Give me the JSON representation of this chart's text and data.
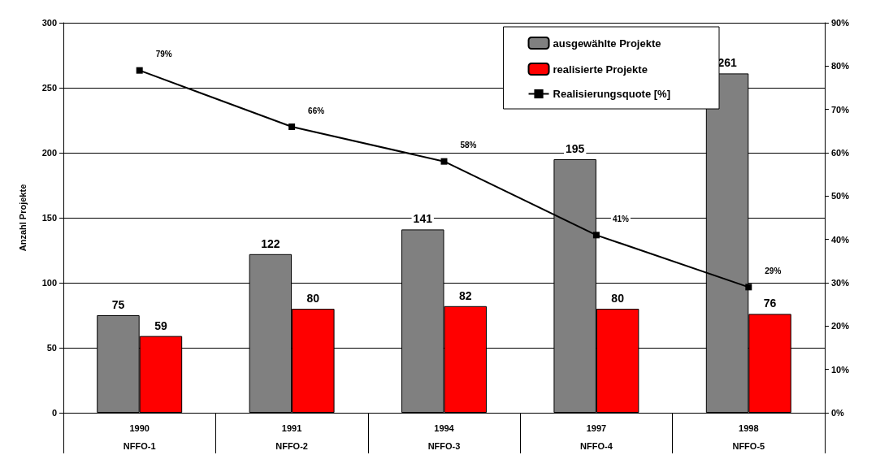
{
  "chart_data": {
    "type": "bar",
    "ylabel": "Anzahl Projekte",
    "categories": [
      "1990\nNFFO-1",
      "1991\nNFFO-2",
      "1994\nNFFO-3",
      "1997\nNFFO-4",
      "1998\nNFFO-5"
    ],
    "series": [
      {
        "name": "ausgewählte Projekte",
        "color": "#808080",
        "values": [
          75,
          122,
          141,
          195,
          261
        ]
      },
      {
        "name": "realisierte Projekte",
        "color": "#ff0000",
        "values": [
          59,
          80,
          82,
          80,
          76
        ]
      },
      {
        "name": "Realisierungsquote [%]",
        "type": "line",
        "axis": "y2",
        "color": "#000000",
        "values": [
          79,
          66,
          58,
          41,
          29
        ],
        "value_labels": [
          "79%",
          "66%",
          "58%",
          "41%",
          "29%"
        ],
        "marker": "square"
      }
    ],
    "ylim": [
      0,
      300
    ],
    "yticks": [
      0,
      50,
      100,
      150,
      200,
      250,
      300
    ],
    "y2lim": [
      0,
      90
    ],
    "y2ticks": [
      {
        "value": 0,
        "label": "0%"
      },
      {
        "value": 10,
        "label": "10%"
      },
      {
        "value": 20,
        "label": "20%"
      },
      {
        "value": 30,
        "label": "30%"
      },
      {
        "value": 40,
        "label": "40%"
      },
      {
        "value": 50,
        "label": "50%"
      },
      {
        "value": 60,
        "label": "60%"
      },
      {
        "value": 70,
        "label": "70%"
      },
      {
        "value": 80,
        "label": "80%"
      },
      {
        "value": 90,
        "label": "90%"
      }
    ],
    "data_labels": true,
    "grid": "y",
    "legend": "top right"
  }
}
